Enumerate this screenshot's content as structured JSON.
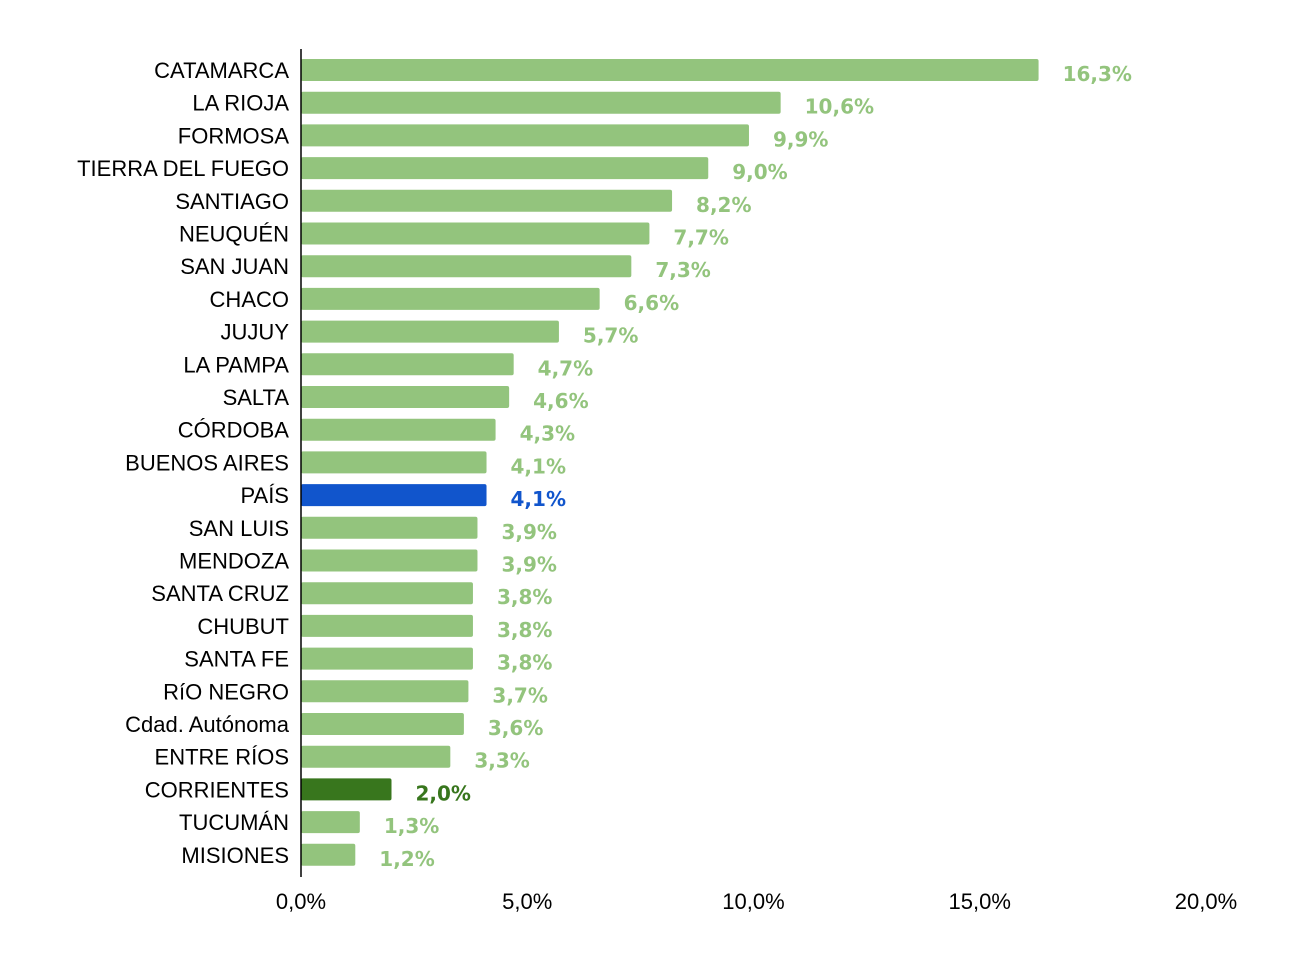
{
  "chart_data": {
    "type": "bar",
    "orientation": "horizontal",
    "categories": [
      "CATAMARCA",
      "LA RIOJA",
      "FORMOSA",
      "TIERRA DEL FUEGO",
      "SANTIAGO",
      "NEUQUÉN",
      "SAN JUAN",
      "CHACO",
      "JUJUY",
      "LA PAMPA",
      "SALTA",
      "CÓRDOBA",
      "BUENOS AIRES",
      "PAÍS",
      "SAN LUIS",
      "MENDOZA",
      "SANTA CRUZ",
      "CHUBUT",
      "SANTA FE",
      "RíO NEGRO",
      "Cdad. Autónoma",
      "ENTRE RÍOS",
      "CORRIENTES",
      "TUCUMÁN",
      "MISIONES"
    ],
    "values": [
      16.3,
      10.6,
      9.9,
      9.0,
      8.2,
      7.7,
      7.3,
      6.6,
      5.7,
      4.7,
      4.6,
      4.3,
      4.1,
      4.1,
      3.9,
      3.9,
      3.8,
      3.8,
      3.8,
      3.7,
      3.6,
      3.3,
      2.0,
      1.3,
      1.2
    ],
    "value_labels": [
      "16,3%",
      "10,6%",
      "9,9%",
      "9,0%",
      "8,2%",
      "7,7%",
      "7,3%",
      "6,6%",
      "5,7%",
      "4,7%",
      "4,6%",
      "4,3%",
      "4,1%",
      "4,1%",
      "3,9%",
      "3,9%",
      "3,8%",
      "3,8%",
      "3,8%",
      "3,7%",
      "3,6%",
      "3,3%",
      "2,0%",
      "1,3%",
      "1,2%"
    ],
    "xlim": [
      0,
      20
    ],
    "xticks": [
      0,
      5,
      10,
      15,
      20
    ],
    "xtick_labels": [
      "0,0%",
      "5,0%",
      "10,0%",
      "15,0%",
      "20,0%"
    ],
    "grid": false,
    "colors": {
      "default": "#93c47d",
      "highlight_country": "#1155cc",
      "highlight_province": "#38761d",
      "axis": "#000000"
    },
    "highlights": {
      "PAÍS": "highlight_country",
      "CORRIENTES": "highlight_province"
    }
  }
}
